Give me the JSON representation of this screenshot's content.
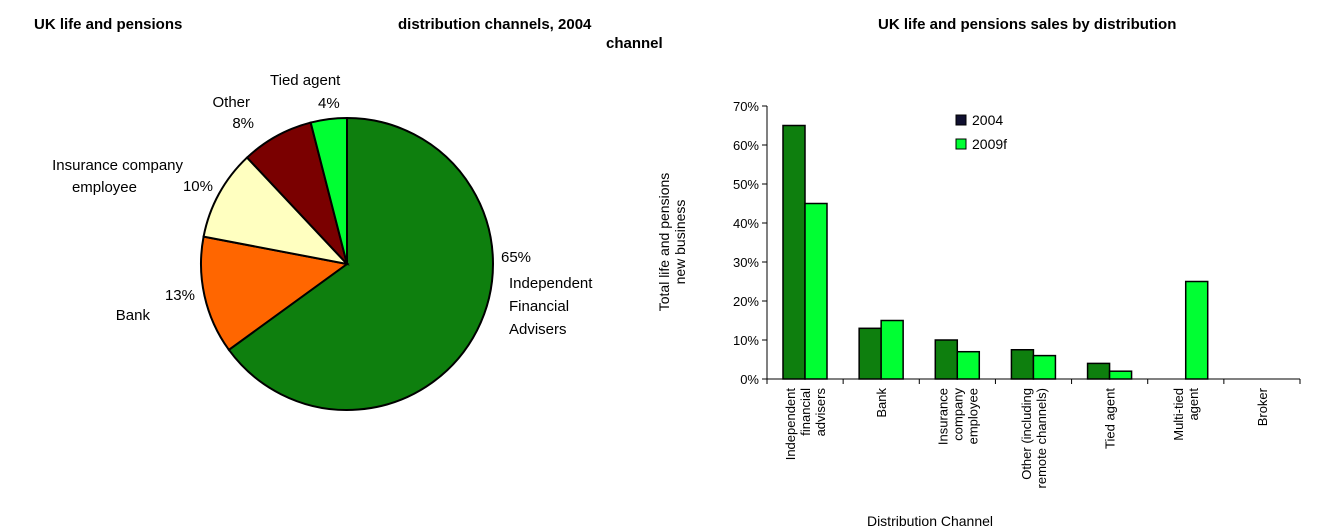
{
  "titles": {
    "left_part1": "UK life and pensions",
    "left_part2": "distribution channels, 2004",
    "left_part3": "channel",
    "right": "UK life and pensions sales by distribution"
  },
  "chart_data": [
    {
      "type": "pie",
      "slices": [
        {
          "value": 65,
          "label_pct": "65%",
          "label_lines": [
            "Independent",
            "Financial",
            "Advisers"
          ],
          "color": "#0e7f0e"
        },
        {
          "value": 13,
          "label_pct": "13%",
          "label_lines": [
            "Bank"
          ],
          "color": "#ff6600"
        },
        {
          "value": 10,
          "label_pct": "10%",
          "label_lines": [
            "Insurance company",
            "employee"
          ],
          "color": "#ffffc0"
        },
        {
          "value": 8,
          "label_pct": "8%",
          "label_lines": [
            "Other"
          ],
          "color": "#7a0000"
        },
        {
          "value": 4,
          "label_pct": "4%",
          "label_lines": [
            "Tied agent"
          ],
          "color": "#00ff33"
        }
      ]
    },
    {
      "type": "bar",
      "ylabel_lines": [
        "Total life and pensions",
        "new business"
      ],
      "xlabel": "Distribution Channel",
      "ylim": [
        0,
        70
      ],
      "yticks": [
        0,
        10,
        20,
        30,
        40,
        50,
        60,
        70
      ],
      "ytick_labels": [
        "0%",
        "10%",
        "20%",
        "30%",
        "40%",
        "50%",
        "60%",
        "70%"
      ],
      "categories": [
        [
          "Independent",
          "financial",
          "advisers"
        ],
        [
          "Bank"
        ],
        [
          "Insurance",
          "company",
          "employee"
        ],
        [
          "Other (including",
          "remote channels)"
        ],
        [
          "Tied agent"
        ],
        [
          "Multi-tied",
          "agent"
        ],
        [
          "Broker"
        ]
      ],
      "series": [
        {
          "name": "2004",
          "values": [
            65,
            13,
            10,
            7.5,
            4,
            0,
            0
          ],
          "color": "#0e7f0e",
          "legend_color": "#101030"
        },
        {
          "name": "2009f",
          "values": [
            45,
            15,
            7,
            6,
            2,
            25,
            0
          ],
          "color": "#00ff33",
          "legend_color": "#00ff33"
        }
      ],
      "legend_position": "top-center"
    }
  ]
}
